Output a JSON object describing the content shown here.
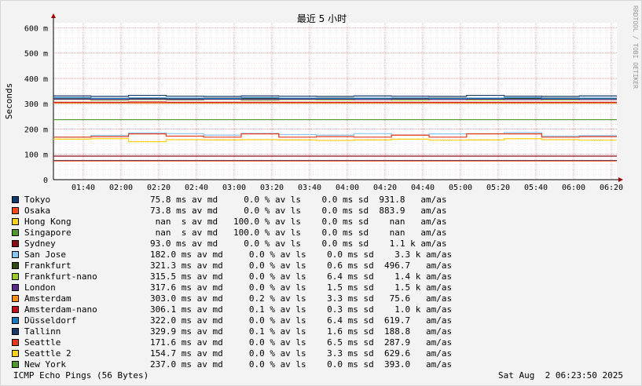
{
  "chart_data": {
    "type": "line",
    "title": "最近 5 小时",
    "ylabel": "Seconds",
    "y_ticks": [
      "0",
      "100 m",
      "200 m",
      "300 m",
      "400 m",
      "500 m",
      "600 m"
    ],
    "ylim": [
      0,
      0.62
    ],
    "x_ticks": [
      "01:40",
      "02:00",
      "02:20",
      "02:40",
      "03:00",
      "03:20",
      "03:40",
      "04:00",
      "04:20",
      "04:40",
      "05:00",
      "05:20",
      "05:40",
      "06:00",
      "06:20"
    ],
    "grid": true,
    "series": [
      {
        "name": "Tokyo",
        "color": "#0b3d6e",
        "avg": 0.0758,
        "values": [
          0.0758,
          0.0758,
          0.0758,
          0.0758,
          0.0758,
          0.0758,
          0.0758,
          0.0758,
          0.0758,
          0.0758,
          0.0758,
          0.0758,
          0.0758,
          0.0758,
          0.0758
        ]
      },
      {
        "name": "Osaka",
        "color": "#ff4a1a",
        "avg": 0.0738,
        "values": [
          0.0738,
          0.0738,
          0.0738,
          0.0738,
          0.0738,
          0.0738,
          0.0738,
          0.0738,
          0.0738,
          0.0738,
          0.0738,
          0.0738,
          0.0738,
          0.0738,
          0.0738
        ]
      },
      {
        "name": "Hong Kong",
        "color": "#ffd21a",
        "avg": null,
        "values": []
      },
      {
        "name": "Singapore",
        "color": "#4d9a2a",
        "avg": null,
        "values": []
      },
      {
        "name": "Sydney",
        "color": "#8a0a1a",
        "avg": 0.093,
        "values": [
          0.093,
          0.093,
          0.093,
          0.093,
          0.093,
          0.093,
          0.093,
          0.093,
          0.093,
          0.093,
          0.093,
          0.093,
          0.093,
          0.093,
          0.093
        ]
      },
      {
        "name": "San Jose",
        "color": "#88c8f0",
        "avg": 0.182,
        "values": [
          0.168,
          0.175,
          0.185,
          0.182,
          0.176,
          0.183,
          0.178,
          0.176,
          0.182,
          0.176,
          0.181,
          0.182,
          0.186,
          0.172,
          0.174
        ]
      },
      {
        "name": "Frankfurt",
        "color": "#304a10",
        "avg": 0.3213,
        "values": [
          0.322,
          0.321,
          0.321,
          0.32,
          0.322,
          0.321,
          0.321,
          0.322,
          0.321,
          0.32,
          0.322,
          0.321,
          0.321,
          0.322,
          0.321
        ]
      },
      {
        "name": "Frankfurt-nano",
        "color": "#9acd2a",
        "avg": 0.3155,
        "values": [
          0.317,
          0.314,
          0.316,
          0.315,
          0.317,
          0.314,
          0.316,
          0.315,
          0.316,
          0.314,
          0.317,
          0.315,
          0.316,
          0.315,
          0.316
        ]
      },
      {
        "name": "London",
        "color": "#5a2a8a",
        "avg": 0.3176,
        "values": [
          0.318,
          0.317,
          0.318,
          0.317,
          0.318,
          0.317,
          0.318,
          0.318,
          0.317,
          0.318,
          0.317,
          0.318,
          0.317,
          0.318,
          0.317
        ]
      },
      {
        "name": "Amsterdam",
        "color": "#ff8c1a",
        "avg": 0.303,
        "values": [
          0.303,
          0.303,
          0.303,
          0.303,
          0.303,
          0.303,
          0.303,
          0.303,
          0.303,
          0.303,
          0.303,
          0.303,
          0.303,
          0.303,
          0.303
        ]
      },
      {
        "name": "Amsterdam-nano",
        "color": "#c0101a",
        "avg": 0.3061,
        "values": [
          0.306,
          0.306,
          0.307,
          0.306,
          0.306,
          0.306,
          0.306,
          0.306,
          0.306,
          0.306,
          0.306,
          0.306,
          0.306,
          0.306,
          0.306
        ]
      },
      {
        "name": "Düsseldorf",
        "color": "#1a7ac0",
        "avg": 0.322,
        "values": [
          0.324,
          0.321,
          0.323,
          0.322,
          0.321,
          0.324,
          0.322,
          0.321,
          0.322,
          0.323,
          0.321,
          0.322,
          0.324,
          0.321,
          0.322
        ]
      },
      {
        "name": "Tallinn",
        "color": "#1a3a6a",
        "avg": 0.3299,
        "values": [
          0.331,
          0.329,
          0.333,
          0.33,
          0.329,
          0.331,
          0.33,
          0.329,
          0.331,
          0.33,
          0.329,
          0.333,
          0.33,
          0.329,
          0.331
        ]
      },
      {
        "name": "Seattle",
        "color": "#e63a1a",
        "avg": 0.1716,
        "values": [
          0.168,
          0.17,
          0.181,
          0.172,
          0.168,
          0.181,
          0.168,
          0.17,
          0.168,
          0.176,
          0.168,
          0.181,
          0.181,
          0.168,
          0.17
        ]
      },
      {
        "name": "Seattle 2",
        "color": "#ffd21a",
        "avg": 0.1547,
        "values": [
          0.16,
          0.162,
          0.15,
          0.158,
          0.157,
          0.158,
          0.157,
          0.155,
          0.157,
          0.16,
          0.156,
          0.157,
          0.162,
          0.158,
          0.156
        ]
      },
      {
        "name": "New York",
        "color": "#4d9a2a",
        "avg": 0.237,
        "values": [
          0.237,
          0.237,
          0.237,
          0.237,
          0.237,
          0.237,
          0.237,
          0.237,
          0.237,
          0.237,
          0.237,
          0.237,
          0.237,
          0.237,
          0.237
        ]
      }
    ]
  },
  "legend": [
    {
      "name": "Tokyo",
      "color": "#0b3d6e",
      "stats": "75.8 ms av md     0.0 % av ls    0.0 ms sd  931.8   am/as"
    },
    {
      "name": "Osaka",
      "color": "#ff4a1a",
      "stats": "73.8 ms av md     0.0 % av ls    0.0 ms sd  883.9   am/as"
    },
    {
      "name": "Hong Kong",
      "color": "#ffd21a",
      "stats": " nan  s av md   100.0 % av ls    0.0 ms sd    nan   am/as"
    },
    {
      "name": "Singapore",
      "color": "#4d9a2a",
      "stats": " nan  s av md   100.0 % av ls    0.0 ms sd    nan   am/as"
    },
    {
      "name": "Sydney",
      "color": "#8a0a1a",
      "stats": "93.0 ms av md     0.0 % av ls    0.0 ms sd    1.1 k am/as"
    },
    {
      "name": "San Jose",
      "color": "#88c8f0",
      "stats": "182.0 ms av md     0.0 % av ls    0.0 ms sd    3.3 k am/as"
    },
    {
      "name": "Frankfurt",
      "color": "#304a10",
      "stats": "321.3 ms av md     0.0 % av ls    0.6 ms sd  496.7   am/as"
    },
    {
      "name": "Frankfurt-nano",
      "color": "#9acd2a",
      "stats": "315.5 ms av md     0.0 % av ls    6.4 ms sd    1.4 k am/as"
    },
    {
      "name": "London",
      "color": "#5a2a8a",
      "stats": "317.6 ms av md     0.0 % av ls    1.5 ms sd    1.5 k am/as"
    },
    {
      "name": "Amsterdam",
      "color": "#ff8c1a",
      "stats": "303.0 ms av md     0.2 % av ls    3.3 ms sd   75.6   am/as"
    },
    {
      "name": "Amsterdam-nano",
      "color": "#c0101a",
      "stats": "306.1 ms av md     0.1 % av ls    0.3 ms sd    1.0 k am/as"
    },
    {
      "name": "Düsseldorf",
      "color": "#1a7ac0",
      "stats": "322.0 ms av md     0.0 % av ls    6.4 ms sd  619.7   am/as"
    },
    {
      "name": "Tallinn",
      "color": "#1a3a6a",
      "stats": "329.9 ms av md     0.1 % av ls    1.6 ms sd  188.8   am/as"
    },
    {
      "name": "Seattle",
      "color": "#e63a1a",
      "stats": "171.6 ms av md     0.0 % av ls    6.5 ms sd  287.9   am/as"
    },
    {
      "name": "Seattle 2",
      "color": "#ffd21a",
      "stats": "154.7 ms av md     0.0 % av ls    3.3 ms sd  629.6   am/as"
    },
    {
      "name": "New York",
      "color": "#4d9a2a",
      "stats": "237.0 ms av md     0.0 % av ls    0.0 ms sd  393.0   am/as"
    }
  ],
  "footer": {
    "left": "ICMP Echo Pings (56 Bytes)",
    "right": "Sat Aug  2 06:23:50 2025"
  },
  "watermark": "RRDTOOL / TOBI OETIKER"
}
